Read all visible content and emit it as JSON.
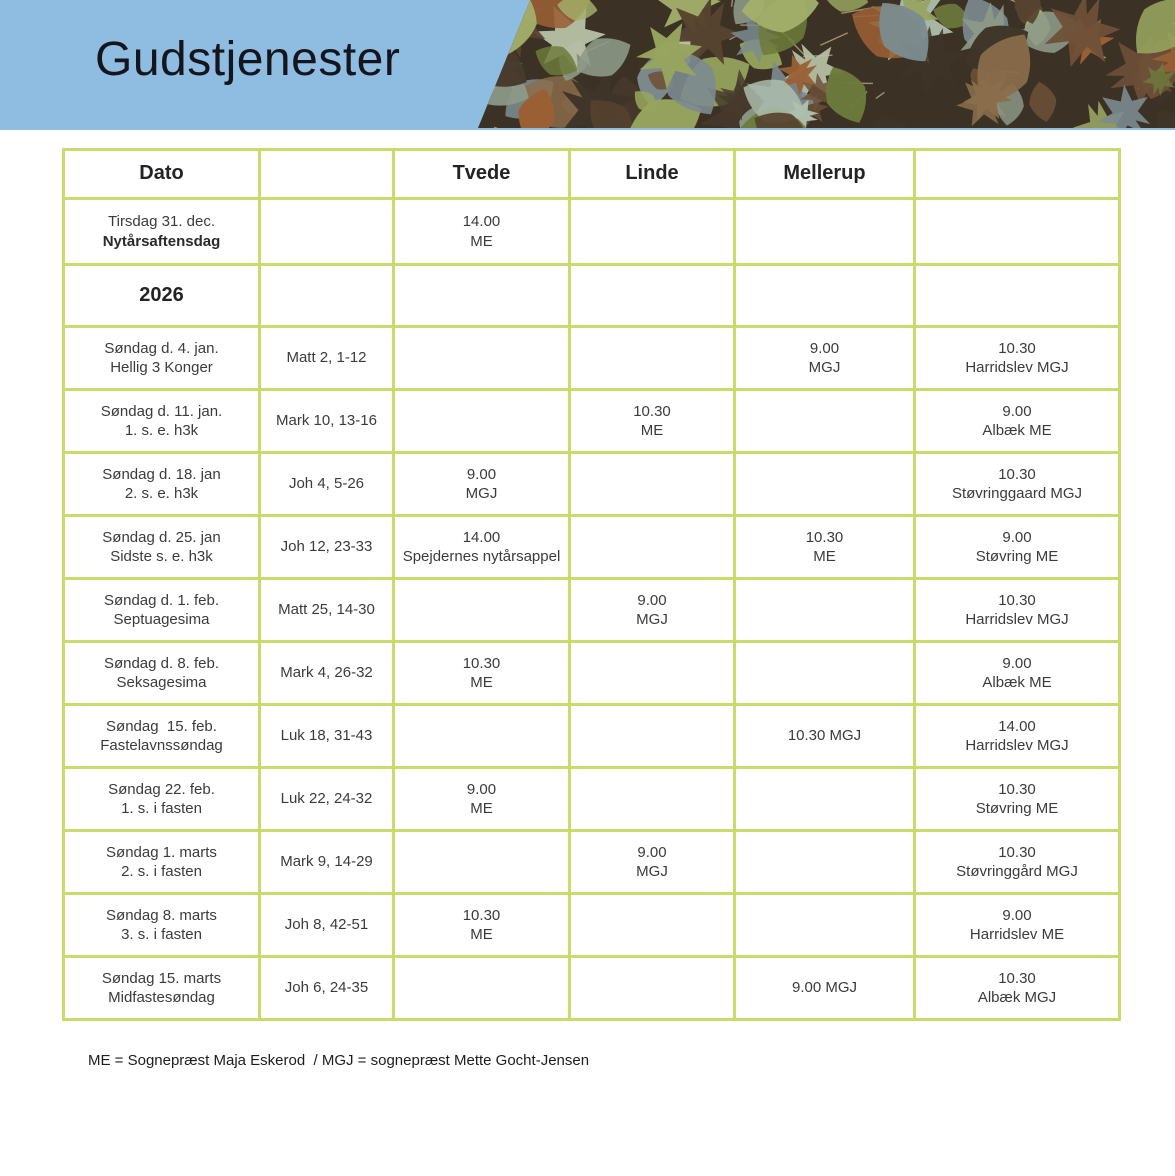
{
  "header": {
    "title": "Gudstjenester"
  },
  "colors": {
    "banner_blue": "#8fbde2",
    "table_border_green": "#cbda6d",
    "text_dark": "#3b3b3b"
  },
  "table": {
    "headers": [
      "Dato",
      "",
      "Tvede",
      "Linde",
      "Mellerup",
      ""
    ],
    "rows": [
      {
        "date": [
          "Tirsdag 31. dec.",
          "Nytårsaftensdag"
        ],
        "bold_date_line": 1,
        "reading": "",
        "tvede": [
          "14.00",
          "ME"
        ],
        "linde": [],
        "mellerup": [],
        "other": []
      },
      {
        "year": "2026"
      },
      {
        "date": [
          "Søndag d. 4. jan.",
          "Hellig 3 Konger"
        ],
        "reading": "Matt 2, 1-12",
        "tvede": [],
        "linde": [],
        "mellerup": [
          "9.00",
          "MGJ"
        ],
        "other": [
          "10.30",
          "Harridslev MGJ"
        ]
      },
      {
        "date": [
          "Søndag d. 11. jan.",
          "1. s. e. h3k"
        ],
        "reading": "Mark 10, 13-16",
        "tvede": [],
        "linde": [
          "10.30",
          "ME"
        ],
        "mellerup": [],
        "other": [
          "9.00",
          "Albæk ME"
        ]
      },
      {
        "date": [
          "Søndag d. 18. jan",
          "2. s. e. h3k"
        ],
        "reading": "Joh 4, 5-26",
        "tvede": [
          "9.00",
          "MGJ"
        ],
        "linde": [],
        "mellerup": [],
        "other": [
          "10.30",
          "Støvringgaard MGJ"
        ]
      },
      {
        "date": [
          "Søndag d. 25. jan",
          "Sidste s. e. h3k"
        ],
        "reading": "Joh 12, 23-33",
        "tvede": [
          "14.00",
          "Spejdernes nytårsappel"
        ],
        "linde": [],
        "mellerup": [
          "10.30",
          "ME"
        ],
        "other": [
          "9.00",
          "Støvring ME"
        ]
      },
      {
        "date": [
          "Søndag d. 1. feb.",
          "Septuagesima"
        ],
        "reading": "Matt 25, 14-30",
        "tvede": [],
        "linde": [
          "9.00",
          "MGJ"
        ],
        "mellerup": [],
        "other": [
          "10.30",
          "Harridslev MGJ"
        ]
      },
      {
        "date": [
          "Søndag d. 8. feb.",
          "Seksagesima"
        ],
        "reading": "Mark 4, 26-32",
        "tvede": [
          "10.30",
          "ME"
        ],
        "linde": [],
        "mellerup": [],
        "other": [
          "9.00",
          "Albæk ME"
        ]
      },
      {
        "date": [
          "Søndag  15. feb.",
          "Fastelavnssøndag"
        ],
        "reading": "Luk 18, 31-43",
        "tvede": [],
        "linde": [],
        "mellerup": [
          "10.30 MGJ"
        ],
        "other": [
          "14.00",
          "Harridslev MGJ"
        ]
      },
      {
        "date": [
          "Søndag 22. feb.",
          "1. s. i fasten"
        ],
        "reading": "Luk 22, 24-32",
        "tvede": [
          "9.00",
          "ME"
        ],
        "linde": [],
        "mellerup": [],
        "other": [
          "10.30",
          "Støvring ME"
        ]
      },
      {
        "date": [
          "Søndag 1. marts",
          "2. s. i fasten"
        ],
        "reading": "Mark 9, 14-29",
        "tvede": [],
        "linde": [
          "9.00",
          "MGJ"
        ],
        "mellerup": [],
        "other": [
          "10.30",
          "Støvringgård MGJ"
        ]
      },
      {
        "date": [
          "Søndag 8. marts",
          "3. s. i fasten"
        ],
        "reading": "Joh 8, 42-51",
        "tvede": [
          "10.30",
          "ME"
        ],
        "linde": [],
        "mellerup": [],
        "other": [
          "9.00",
          "Harridslev ME"
        ]
      },
      {
        "date": [
          "Søndag 15. marts",
          "Midfastesøndag"
        ],
        "reading": "Joh 6, 24-35",
        "tvede": [],
        "linde": [],
        "mellerup": [
          "9.00 MGJ"
        ],
        "other": [
          "10.30",
          "Albæk MGJ"
        ]
      }
    ]
  },
  "footer": {
    "legend": "ME = Sognepræst Maja Eskerod  / MGJ = sognepræst Mette Gocht-Jensen"
  }
}
